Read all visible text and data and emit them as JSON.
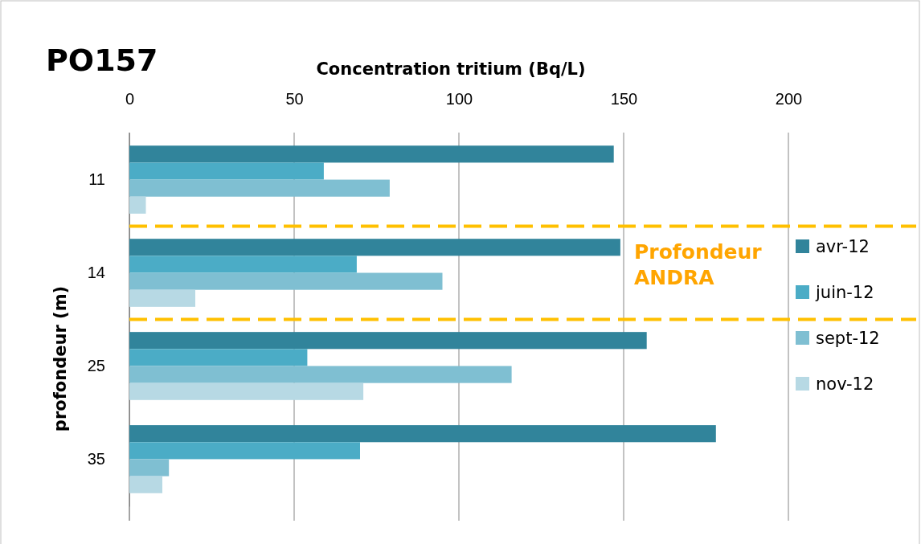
{
  "chart_data": {
    "type": "bar",
    "orientation": "horizontal",
    "title": "PO157",
    "xlabel": "Concentration tritium (Bq/L)",
    "ylabel": "profondeur (m)",
    "categories": [
      "11",
      "14",
      "25",
      "35"
    ],
    "series": [
      {
        "name": "avr-12",
        "color": "#31849b",
        "values": [
          147,
          149,
          157,
          178
        ]
      },
      {
        "name": "juin-12",
        "color": "#4bacc6",
        "values": [
          59,
          69,
          54,
          70
        ]
      },
      {
        "name": "sept-12",
        "color": "#7fbfd2",
        "values": [
          79,
          95,
          116,
          12
        ]
      },
      {
        "name": "nov-12",
        "color": "#b7d9e4",
        "values": [
          5,
          20,
          71,
          10
        ]
      }
    ],
    "xlim": [
      0,
      200
    ],
    "xticks": [
      0,
      50,
      100,
      150,
      200
    ],
    "grid": "x",
    "legend": "right",
    "annotations": [
      "Profondeur ANDRA"
    ]
  }
}
